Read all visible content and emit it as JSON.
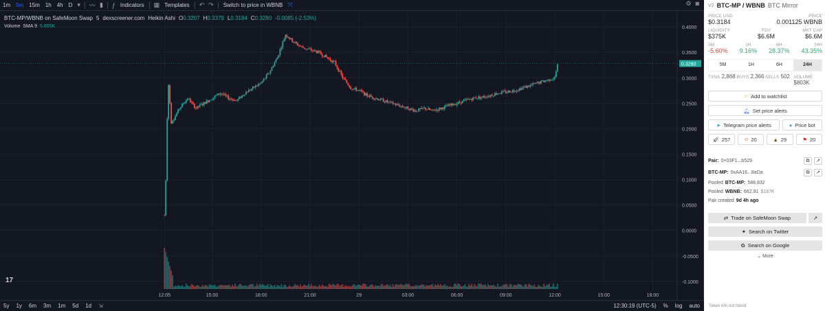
{
  "toolbar": {
    "intervals": [
      "1m",
      "5m",
      "15m",
      "1h",
      "4h",
      "D"
    ],
    "active_interval": "5m",
    "indicators_label": "Indicators",
    "templates_label": "Templates",
    "switch_label": "Switch to price in WBNB"
  },
  "legend": {
    "symbol": "BTC-MP/WBNB on SafeMoon Swap",
    "interval": "5",
    "source": "dexscreener.com",
    "style": "Heikin Ashi",
    "o": "0.3207",
    "h": "0.3379",
    "l": "0.3184",
    "c": "0.3280",
    "change": "-0.0085 (-2.53%)"
  },
  "volume_legend": {
    "label": "Volume",
    "sma": "SMA 9",
    "value": "5.655K"
  },
  "chart_data": {
    "type": "candlestick",
    "y_ticks": [
      "0.4000",
      "0.3500",
      "0.3000",
      "0.2500",
      "0.2000",
      "0.1500",
      "0.1000",
      "0.0500",
      "0.0000",
      "-0.0500",
      "-0.1000"
    ],
    "ylim": [
      -0.115,
      0.415
    ],
    "current_price_label": "0.3280",
    "x_ticks": [
      "12:05",
      "15:00",
      "18:00",
      "21:00",
      "29",
      "03:00",
      "06:00",
      "09:00",
      "12:00",
      "15:00",
      "18:00"
    ],
    "x_tick_positions": [
      12.08,
      15,
      18,
      21,
      24,
      27,
      30,
      33,
      36,
      39,
      42
    ],
    "xlim": [
      2.0,
      43.5
    ],
    "price_path": [
      [
        12.08,
        0.03
      ],
      [
        12.15,
        0.08
      ],
      [
        12.3,
        0.3
      ],
      [
        12.5,
        0.21
      ],
      [
        13,
        0.24
      ],
      [
        13.5,
        0.26
      ],
      [
        14,
        0.24
      ],
      [
        14.5,
        0.25
      ],
      [
        15,
        0.26
      ],
      [
        15.5,
        0.27
      ],
      [
        16,
        0.26
      ],
      [
        16.5,
        0.255
      ],
      [
        17,
        0.27
      ],
      [
        17.5,
        0.28
      ],
      [
        18,
        0.29
      ],
      [
        18.5,
        0.31
      ],
      [
        19,
        0.34
      ],
      [
        19.5,
        0.385
      ],
      [
        20,
        0.37
      ],
      [
        20.5,
        0.36
      ],
      [
        21,
        0.355
      ],
      [
        21.5,
        0.35
      ],
      [
        22,
        0.34
      ],
      [
        22.5,
        0.33
      ],
      [
        23,
        0.3
      ],
      [
        23.5,
        0.28
      ],
      [
        24,
        0.275
      ],
      [
        24.5,
        0.265
      ],
      [
        25,
        0.26
      ],
      [
        25.5,
        0.255
      ],
      [
        26,
        0.25
      ],
      [
        26.5,
        0.245
      ],
      [
        27,
        0.24
      ],
      [
        27.5,
        0.235
      ],
      [
        28,
        0.24
      ],
      [
        28.5,
        0.235
      ],
      [
        29,
        0.24
      ],
      [
        29.5,
        0.245
      ],
      [
        30,
        0.25
      ],
      [
        30.5,
        0.255
      ],
      [
        31,
        0.26
      ],
      [
        31.5,
        0.262
      ],
      [
        32,
        0.265
      ],
      [
        32.5,
        0.27
      ],
      [
        33,
        0.272
      ],
      [
        33.5,
        0.275
      ],
      [
        34,
        0.28
      ],
      [
        34.5,
        0.285
      ],
      [
        35,
        0.29
      ],
      [
        35.5,
        0.295
      ],
      [
        36,
        0.3
      ],
      [
        36.2,
        0.33
      ]
    ]
  },
  "bottom_bar": {
    "ranges": [
      "5y",
      "1y",
      "6m",
      "3m",
      "1m",
      "5d",
      "1d"
    ],
    "time": "12:30:19 (UTC-5)",
    "pct": "%",
    "log": "log",
    "auto": "auto"
  },
  "sidebar": {
    "version": "V2",
    "pair": "BTC-MP / WBNB",
    "mirror": "BTC Mirror",
    "price_usd_label": "PRICE USD",
    "price_usd": "$0.3184",
    "price_label": "PRICE",
    "price": "0.001125 WBNB",
    "liquidity_label": "LIQUIDITY",
    "liquidity": "$375K",
    "fdv_label": "FDV",
    "fdv": "$6.6M",
    "mktcap_label": "MKT CAP",
    "mktcap": "$6.6M",
    "changes": [
      {
        "label": "5M",
        "value": "-5.60%",
        "neg": true
      },
      {
        "label": "1H",
        "value": "9.16%",
        "neg": false
      },
      {
        "label": "6H",
        "value": "28.37%",
        "neg": false
      },
      {
        "label": "24H",
        "value": "43.35%",
        "neg": false
      }
    ],
    "tabs": [
      "5M",
      "1H",
      "6H",
      "24H"
    ],
    "active_tab": "24H",
    "stats": [
      {
        "label": "TXNS",
        "value": "2,868"
      },
      {
        "label": "BUYS",
        "value": "2,366"
      },
      {
        "label": "SELLS",
        "value": "502"
      },
      {
        "label": "VOLUME",
        "value": "$803K"
      }
    ],
    "watchlist": "Add to watchlist",
    "price_alerts": "Set price alerts",
    "telegram": "Telegram price alerts",
    "price_bot": "Price bot",
    "reactions": [
      "257",
      "20",
      "29",
      "20"
    ],
    "pair_label": "Pair:",
    "pair_addr": "0×03F1...b529",
    "token_label": "BTC-MP:",
    "token_addr": "0xAA16...8aDa",
    "pooled_a_prefix": "Pooled",
    "pooled_a_sym": "BTC-MP:",
    "pooled_a": "588,832",
    "pooled_b_prefix": "Pooled",
    "pooled_b_sym": "WBNB:",
    "pooled_b": "662.91",
    "pooled_b_usd": "$187K",
    "created_prefix": "Pair created",
    "created": "9d 4h ago",
    "trade": "Trade on SafeMoon Swap",
    "twitter": "Search on Twitter",
    "google": "Search on Google",
    "more": "More",
    "footnote": "Token info not found"
  },
  "colors": {
    "up": "#26a69a",
    "down": "#ef5350",
    "bg": "#131722",
    "price_line": "#26a69a"
  }
}
